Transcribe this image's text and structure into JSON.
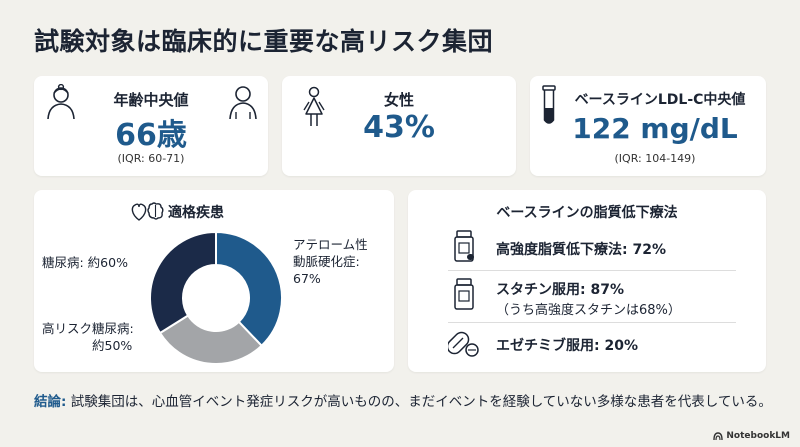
{
  "title": "試験対象は臨床的に重要な高リスク集団",
  "stats": {
    "age": {
      "label": "年齢中央値",
      "value": "66歳",
      "sub": "(IQR: 60-71)"
    },
    "female": {
      "label": "女性",
      "value": "43%"
    },
    "ldl": {
      "label": "ベースラインLDL-C中央値",
      "value": "122 mg/dL",
      "sub": "(IQR: 104-149)"
    }
  },
  "disease": {
    "heading": "適格疾患",
    "labels": {
      "athero_1": "アテローム性",
      "athero_2": "動脈硬化症:",
      "athero_3": "67%",
      "diabetes": "糖尿病: 約60%",
      "highrisk_1": "高リスク糖尿病:",
      "highrisk_2": "約50%"
    },
    "segments": [
      {
        "name": "アテローム性動脈硬化症",
        "value": 67,
        "color": "#1f5a8c"
      },
      {
        "name": "高リスク糖尿病",
        "value": 50,
        "color": "#a3a5a8"
      },
      {
        "name": "糖尿病",
        "value": 60,
        "color": "#1b2a48"
      }
    ]
  },
  "therapy": {
    "heading": "ベースラインの脂質低下療法",
    "items": [
      {
        "text": "高強度脂質低下療法: 72%",
        "icon": "pill-bottle-icon"
      },
      {
        "text": "スタチン服用: 87%",
        "sub": "（うち高強度スタチンは68%）",
        "icon": "pill-bottle-icon"
      },
      {
        "text": "エゼチミブ服用: 20%",
        "icon": "capsule-icon"
      }
    ]
  },
  "conclusion": {
    "lead": "結論:",
    "text": "試験集団は、心血管イベント発症リスクが高いものの、まだイベントを経験していない多様な患者を代表している。"
  },
  "branding": {
    "name": "NotebookLM"
  }
}
